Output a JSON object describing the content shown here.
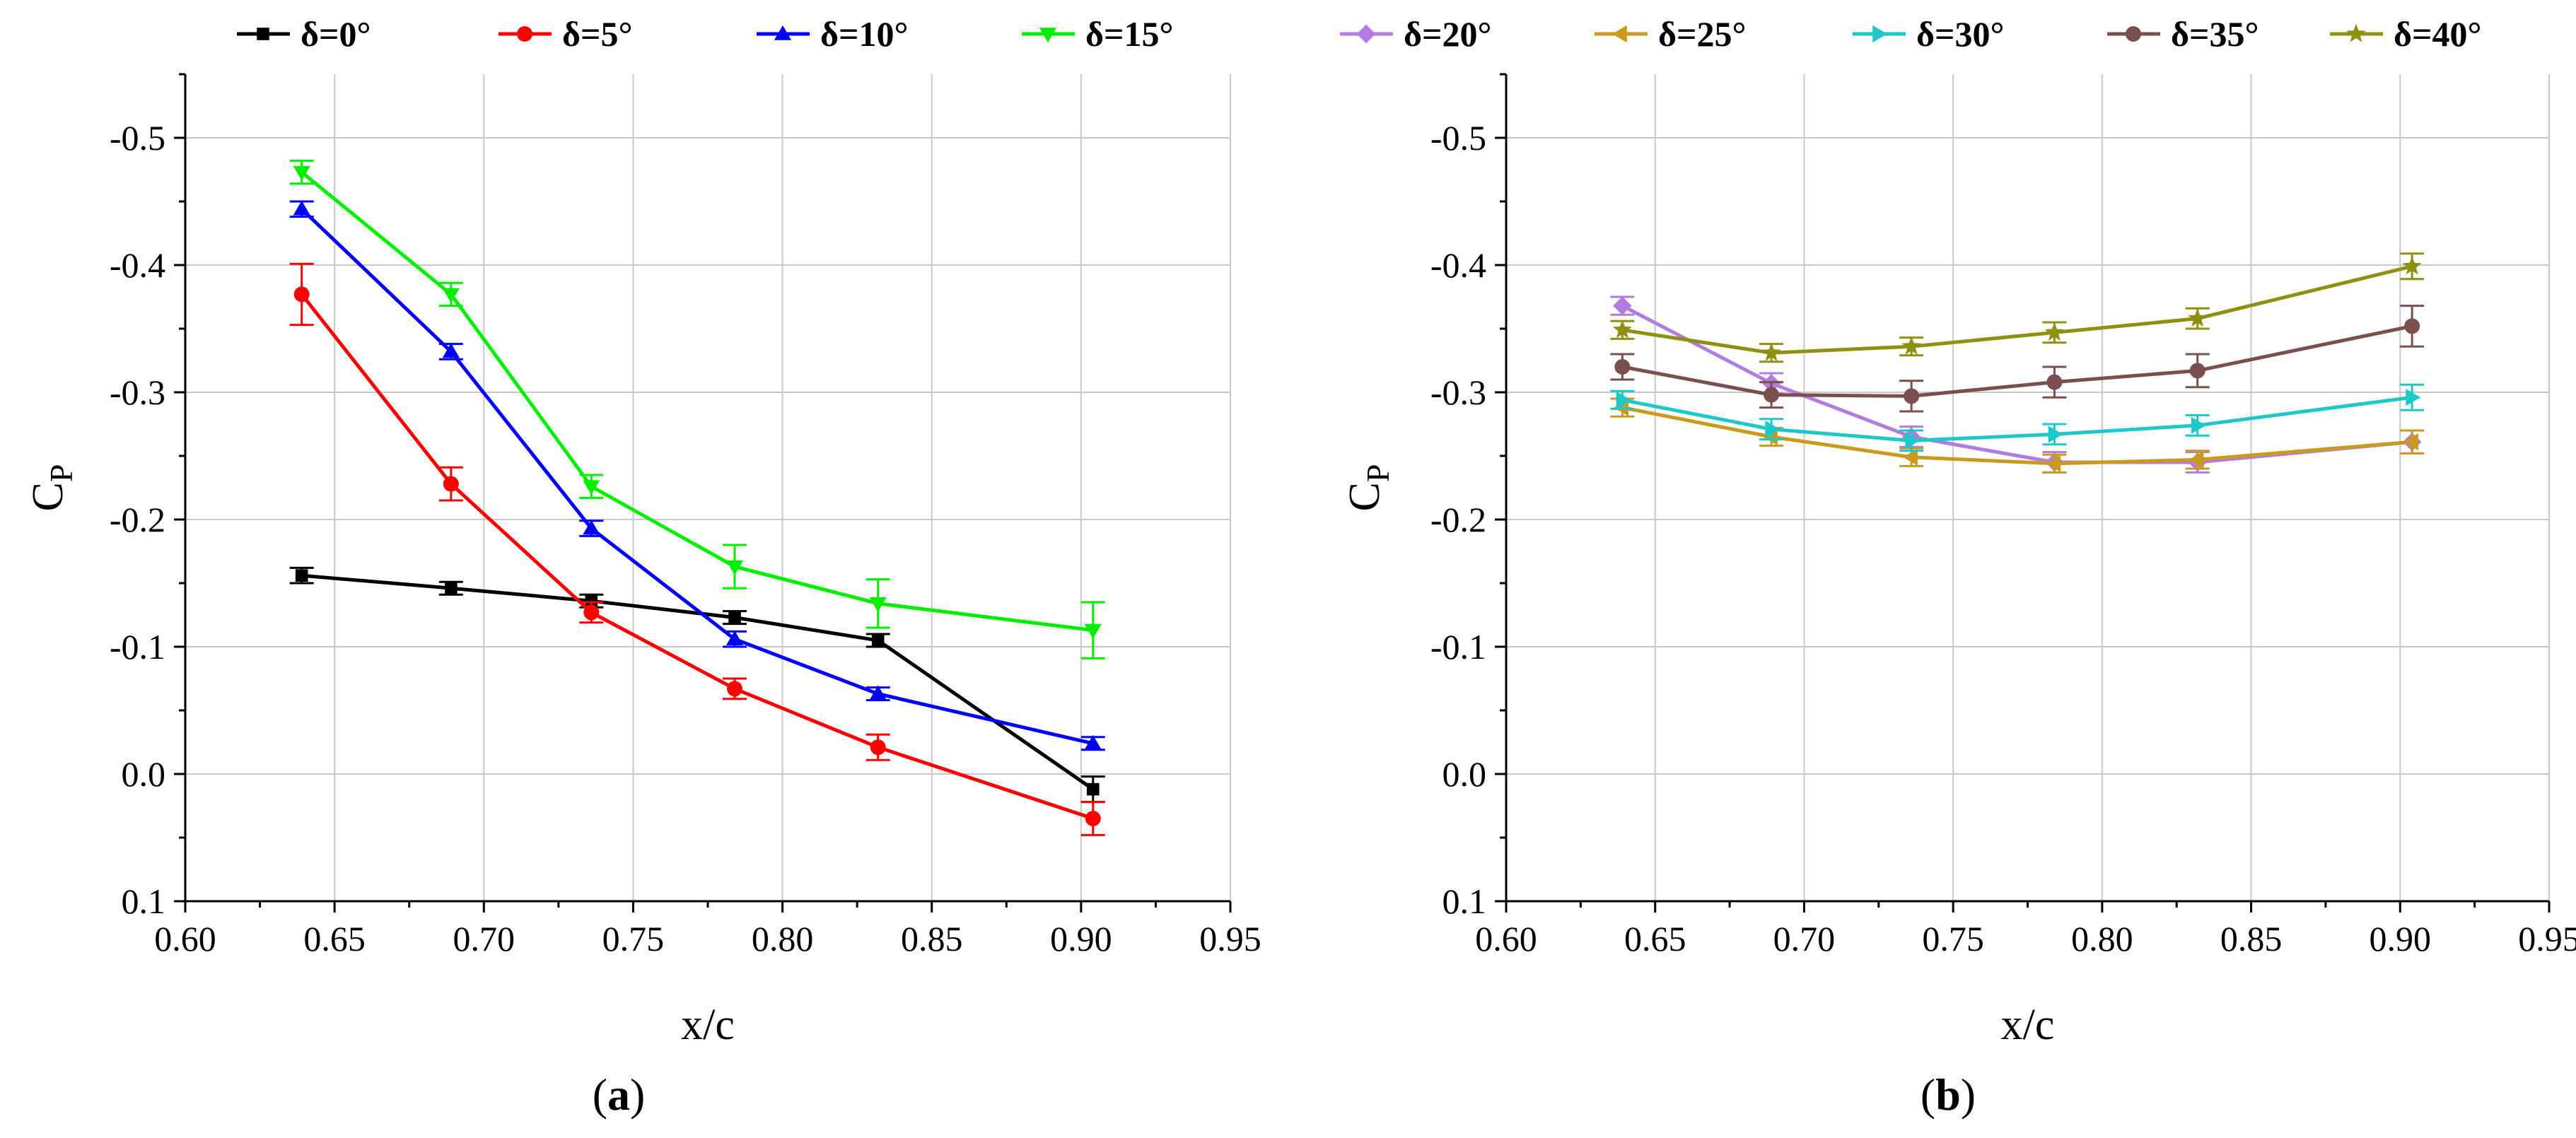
{
  "chart_data": [
    {
      "panel": "a",
      "panel_label_open": "(",
      "panel_label_letter": "a",
      "panel_label_close": ")",
      "type": "line",
      "xlabel": "x/c",
      "ylabel_main": "C",
      "ylabel_sub": "P",
      "xlim": [
        0.6,
        0.95
      ],
      "ylim": [
        0.1,
        -0.55
      ],
      "y_inverted": true,
      "x_ticks": [
        "0.60",
        "0.65",
        "0.70",
        "0.75",
        "0.80",
        "0.85",
        "0.90",
        "0.95"
      ],
      "x_tick_values": [
        0.6,
        0.65,
        0.7,
        0.75,
        0.8,
        0.85,
        0.9,
        0.95
      ],
      "y_ticks": [
        "0.1",
        "0.0",
        "-0.1",
        "-0.2",
        "-0.3",
        "-0.4",
        "-0.5"
      ],
      "y_tick_values": [
        0.1,
        0.0,
        -0.1,
        -0.2,
        -0.3,
        -0.4,
        -0.5
      ],
      "grid": true,
      "legend_position": "top",
      "x": [
        0.639,
        0.689,
        0.736,
        0.784,
        0.832,
        0.904
      ],
      "series": [
        {
          "name": "δ=0°",
          "color": "#000000",
          "marker": "square",
          "values": [
            -0.156,
            -0.146,
            -0.136,
            -0.123,
            -0.105,
            0.012
          ],
          "errors": [
            0.006,
            0.005,
            0.005,
            0.005,
            0.005,
            0.01
          ]
        },
        {
          "name": "δ=5°",
          "color": "#ff0000",
          "marker": "circle",
          "values": [
            -0.377,
            -0.228,
            -0.127,
            -0.067,
            -0.021,
            0.035
          ],
          "errors": [
            0.024,
            0.013,
            0.008,
            0.008,
            0.01,
            0.013
          ]
        },
        {
          "name": "δ=10°",
          "color": "#0000ff",
          "marker": "triangle-up",
          "values": [
            -0.444,
            -0.332,
            -0.193,
            -0.106,
            -0.063,
            -0.024
          ],
          "errors": [
            0.006,
            0.006,
            0.006,
            0.006,
            0.005,
            0.005
          ]
        },
        {
          "name": "δ=15°",
          "color": "#00ee00",
          "marker": "triangle-down",
          "values": [
            -0.473,
            -0.377,
            -0.226,
            -0.163,
            -0.134,
            -0.113
          ],
          "errors": [
            0.009,
            0.009,
            0.009,
            0.017,
            0.019,
            0.022
          ]
        }
      ]
    },
    {
      "panel": "b",
      "panel_label_open": "(",
      "panel_label_letter": "b",
      "panel_label_close": ")",
      "type": "line",
      "xlabel": "x/c",
      "ylabel_main": "C",
      "ylabel_sub": "P",
      "xlim": [
        0.6,
        0.95
      ],
      "ylim": [
        0.1,
        -0.55
      ],
      "y_inverted": true,
      "x_ticks": [
        "0.60",
        "0.65",
        "0.70",
        "0.75",
        "0.80",
        "0.85",
        "0.90",
        "0.95"
      ],
      "x_tick_values": [
        0.6,
        0.65,
        0.7,
        0.75,
        0.8,
        0.85,
        0.9,
        0.95
      ],
      "y_ticks": [
        "0.1",
        "0.0",
        "-0.1",
        "-0.2",
        "-0.3",
        "-0.4",
        "-0.5"
      ],
      "y_tick_values": [
        0.1,
        0.0,
        -0.1,
        -0.2,
        -0.3,
        -0.4,
        -0.5
      ],
      "grid": true,
      "legend_position": "top",
      "x": [
        0.639,
        0.689,
        0.736,
        0.784,
        0.832,
        0.904
      ],
      "series": [
        {
          "name": "δ=20°",
          "color": "#b27be0",
          "marker": "diamond",
          "values": [
            -0.368,
            -0.307,
            -0.265,
            -0.245,
            -0.245,
            -0.261
          ],
          "errors": [
            0.007,
            0.008,
            0.008,
            0.008,
            0.008,
            0.009
          ]
        },
        {
          "name": "δ=25°",
          "color": "#c99a1c",
          "marker": "triangle-left",
          "values": [
            -0.288,
            -0.265,
            -0.249,
            -0.244,
            -0.247,
            -0.261
          ],
          "errors": [
            0.007,
            0.007,
            0.007,
            0.007,
            0.007,
            0.009
          ]
        },
        {
          "name": "δ=30°",
          "color": "#1ec8c8",
          "marker": "triangle-right",
          "values": [
            -0.294,
            -0.271,
            -0.262,
            -0.267,
            -0.274,
            -0.296
          ],
          "errors": [
            0.007,
            0.008,
            0.008,
            0.008,
            0.008,
            0.01
          ]
        },
        {
          "name": "δ=35°",
          "color": "#7a4f4f",
          "marker": "hexagon",
          "values": [
            -0.32,
            -0.298,
            -0.297,
            -0.308,
            -0.317,
            -0.352
          ],
          "errors": [
            0.01,
            0.01,
            0.012,
            0.012,
            0.013,
            0.016
          ]
        },
        {
          "name": "δ=40°",
          "color": "#8f8f12",
          "marker": "star",
          "values": [
            -0.349,
            -0.331,
            -0.336,
            -0.347,
            -0.358,
            -0.399
          ],
          "errors": [
            0.007,
            0.007,
            0.007,
            0.008,
            0.008,
            0.01
          ]
        }
      ]
    }
  ]
}
